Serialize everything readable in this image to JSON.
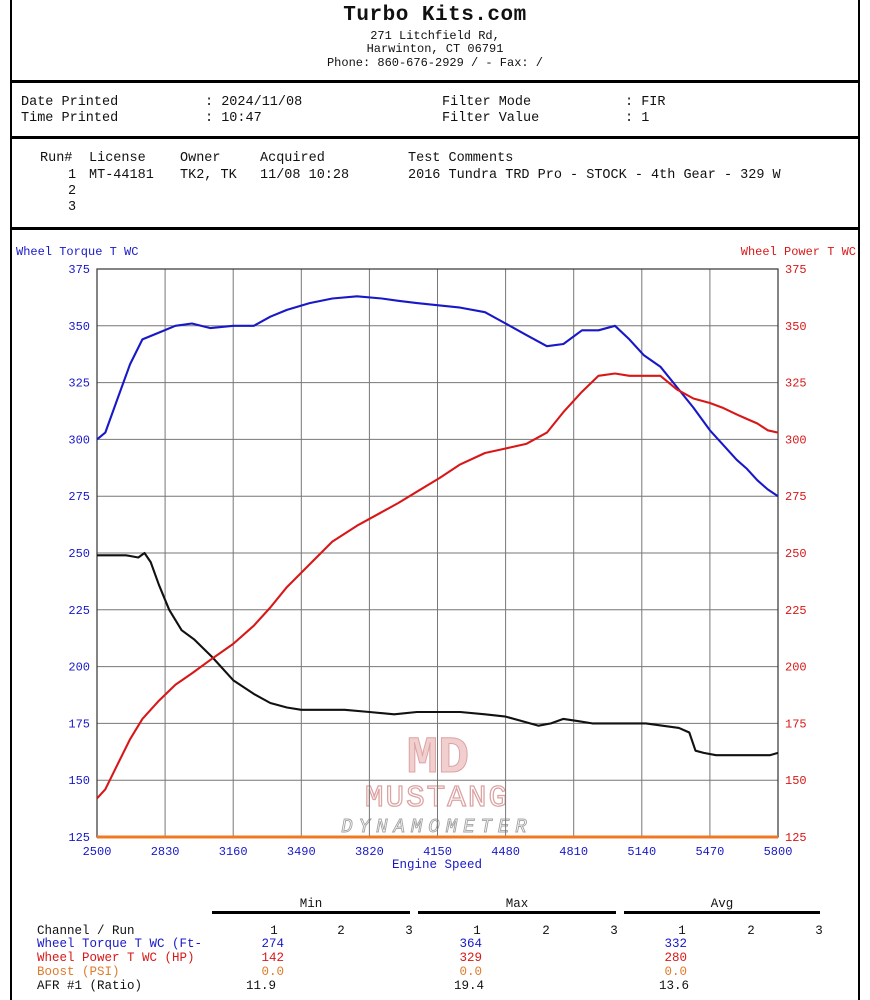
{
  "header": {
    "company": "Turbo Kits.com",
    "address1": "271 Litchfield Rd,",
    "address2": "Harwinton, CT  06791",
    "phone_line": "Phone: 860-676-2929 /  - Fax:  /"
  },
  "info": {
    "date_label": "Date Printed",
    "date_value": ": 2024/11/08",
    "time_label": "Time Printed",
    "time_value": ": 10:47",
    "filter_mode_label": "Filter Mode",
    "filter_mode_value": ": FIR",
    "filter_value_label": "Filter Value",
    "filter_value_value": ": 1"
  },
  "runs": {
    "headers": [
      "Run#",
      "License",
      "Owner",
      "Acquired",
      "Test Comments"
    ],
    "rows": [
      {
        "run": "1",
        "license": "MT-44181",
        "owner": "TK2, TK",
        "acquired": "11/08 10:28",
        "comments": "2016 Tundra TRD Pro - STOCK - 4th Gear - 329 W"
      },
      {
        "run": "2",
        "license": "",
        "owner": "",
        "acquired": "",
        "comments": ""
      },
      {
        "run": "3",
        "license": "",
        "owner": "",
        "acquired": "",
        "comments": ""
      }
    ]
  },
  "logo": {
    "mark": "MD",
    "name": "MUSTANG",
    "sub": "DYNAMOMETER"
  },
  "chart_data": {
    "type": "line",
    "left_axis_title": "Wheel Torque T WC",
    "right_axis_title": "Wheel Power T WC",
    "xlabel": "Engine Speed",
    "xlim": [
      2500,
      5800
    ],
    "ylim": [
      125,
      375
    ],
    "x_ticks": [
      2500,
      2830,
      3160,
      3490,
      3820,
      4150,
      4480,
      4810,
      5140,
      5470,
      5800
    ],
    "y_ticks": [
      125,
      150,
      175,
      200,
      225,
      250,
      275,
      300,
      325,
      350,
      375
    ],
    "grid": true,
    "colors": {
      "torque": "#1818c8",
      "power": "#d81818",
      "afr": "#111111",
      "boost": "#f07820"
    },
    "series": [
      {
        "key": "torque",
        "color": "#1818c8",
        "points": [
          [
            2500,
            300
          ],
          [
            2540,
            303
          ],
          [
            2600,
            318
          ],
          [
            2660,
            333
          ],
          [
            2720,
            344
          ],
          [
            2800,
            347
          ],
          [
            2880,
            350
          ],
          [
            2960,
            351
          ],
          [
            3050,
            349
          ],
          [
            3160,
            350
          ],
          [
            3260,
            350
          ],
          [
            3340,
            354
          ],
          [
            3420,
            357
          ],
          [
            3530,
            360
          ],
          [
            3640,
            362
          ],
          [
            3760,
            363
          ],
          [
            3880,
            362
          ],
          [
            3960,
            361
          ],
          [
            4050,
            360
          ],
          [
            4160,
            359
          ],
          [
            4260,
            358
          ],
          [
            4380,
            356
          ],
          [
            4480,
            351
          ],
          [
            4580,
            346
          ],
          [
            4680,
            341
          ],
          [
            4760,
            342
          ],
          [
            4850,
            348
          ],
          [
            4930,
            348
          ],
          [
            5010,
            350
          ],
          [
            5080,
            344
          ],
          [
            5150,
            337
          ],
          [
            5230,
            332
          ],
          [
            5310,
            323
          ],
          [
            5390,
            314
          ],
          [
            5470,
            304
          ],
          [
            5530,
            298
          ],
          [
            5600,
            291
          ],
          [
            5650,
            287
          ],
          [
            5700,
            282
          ],
          [
            5750,
            278
          ],
          [
            5800,
            275
          ]
        ]
      },
      {
        "key": "power",
        "color": "#d81818",
        "points": [
          [
            2500,
            142
          ],
          [
            2540,
            146
          ],
          [
            2600,
            157
          ],
          [
            2660,
            168
          ],
          [
            2720,
            177
          ],
          [
            2800,
            185
          ],
          [
            2880,
            192
          ],
          [
            2960,
            197
          ],
          [
            3050,
            203
          ],
          [
            3160,
            210
          ],
          [
            3260,
            218
          ],
          [
            3340,
            226
          ],
          [
            3420,
            235
          ],
          [
            3530,
            245
          ],
          [
            3640,
            255
          ],
          [
            3760,
            262
          ],
          [
            3880,
            268
          ],
          [
            3960,
            272
          ],
          [
            4050,
            277
          ],
          [
            4160,
            283
          ],
          [
            4260,
            289
          ],
          [
            4380,
            294
          ],
          [
            4480,
            296
          ],
          [
            4580,
            298
          ],
          [
            4680,
            303
          ],
          [
            4760,
            312
          ],
          [
            4850,
            321
          ],
          [
            4930,
            328
          ],
          [
            5010,
            329
          ],
          [
            5080,
            328
          ],
          [
            5150,
            328
          ],
          [
            5230,
            328
          ],
          [
            5310,
            322
          ],
          [
            5390,
            318
          ],
          [
            5470,
            316
          ],
          [
            5530,
            314
          ],
          [
            5600,
            311
          ],
          [
            5650,
            309
          ],
          [
            5700,
            307
          ],
          [
            5750,
            304
          ],
          [
            5800,
            303
          ]
        ]
      },
      {
        "key": "afr",
        "color": "#111111",
        "points": [
          [
            2500,
            249
          ],
          [
            2560,
            249
          ],
          [
            2640,
            249
          ],
          [
            2700,
            248
          ],
          [
            2730,
            250
          ],
          [
            2760,
            246
          ],
          [
            2800,
            236
          ],
          [
            2850,
            225
          ],
          [
            2910,
            216
          ],
          [
            2970,
            212
          ],
          [
            3060,
            204
          ],
          [
            3160,
            194
          ],
          [
            3260,
            188
          ],
          [
            3340,
            184
          ],
          [
            3420,
            182
          ],
          [
            3490,
            181
          ],
          [
            3600,
            181
          ],
          [
            3700,
            181
          ],
          [
            3820,
            180
          ],
          [
            3940,
            179
          ],
          [
            4050,
            180
          ],
          [
            4150,
            180
          ],
          [
            4260,
            180
          ],
          [
            4380,
            179
          ],
          [
            4480,
            178
          ],
          [
            4560,
            176
          ],
          [
            4640,
            174
          ],
          [
            4700,
            175
          ],
          [
            4760,
            177
          ],
          [
            4830,
            176
          ],
          [
            4900,
            175
          ],
          [
            4990,
            175
          ],
          [
            5080,
            175
          ],
          [
            5160,
            175
          ],
          [
            5240,
            174
          ],
          [
            5320,
            173
          ],
          [
            5370,
            171
          ],
          [
            5400,
            163
          ],
          [
            5440,
            162
          ],
          [
            5500,
            161
          ],
          [
            5600,
            161
          ],
          [
            5700,
            161
          ],
          [
            5760,
            161
          ],
          [
            5800,
            162
          ]
        ]
      },
      {
        "key": "boost",
        "color": "#f07820",
        "points": [
          [
            2500,
            125
          ],
          [
            5800,
            125
          ]
        ]
      }
    ]
  },
  "summary": {
    "group_labels": [
      "Min",
      "Max",
      "Avg"
    ],
    "run_numbers": [
      "1",
      "2",
      "3"
    ],
    "channel_header": "Channel / Run",
    "rows": [
      {
        "label": "Wheel Torque T WC (Ft-",
        "min": "274",
        "max": "364",
        "avg": "332",
        "color": "#1818c8"
      },
      {
        "label": "Wheel Power T WC (HP)",
        "min": "142",
        "max": "329",
        "avg": "280",
        "color": "#d81818"
      },
      {
        "label": "Boost (PSI)",
        "min": "0.0",
        "max": "0.0",
        "avg": "0.0",
        "color": "#e07a2c"
      },
      {
        "label": "AFR #1 (Ratio)",
        "min": "11.9",
        "max": "19.4",
        "avg": "13.6",
        "color": "#111111"
      }
    ]
  }
}
